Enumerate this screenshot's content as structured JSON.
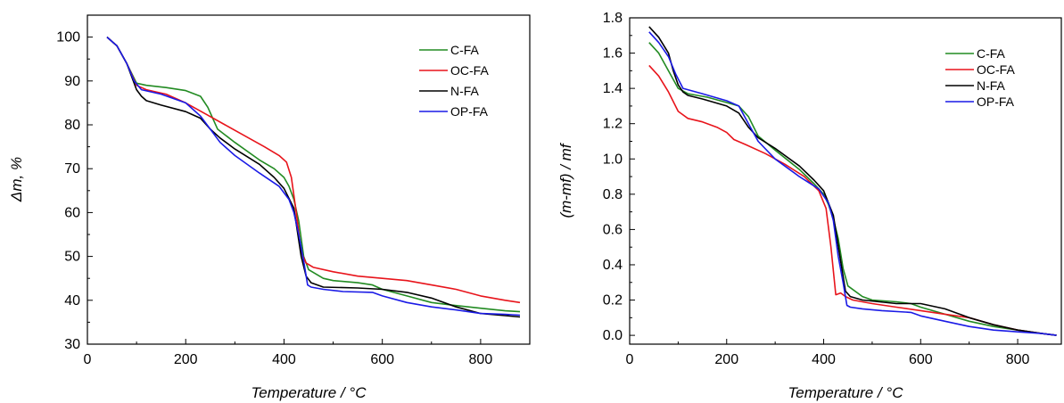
{
  "chart_data": [
    {
      "type": "line",
      "xlabel": "Temperature / °C",
      "ylabel": "Δm, %",
      "xlim": [
        0,
        900
      ],
      "ylim": [
        30,
        105
      ],
      "xticks": [
        0,
        200,
        400,
        600,
        800
      ],
      "yticks": [
        30,
        40,
        50,
        60,
        70,
        80,
        90,
        100
      ],
      "legend_position": "top-right",
      "series": [
        {
          "name": "C-FA",
          "color": "#228B22",
          "x": [
            40,
            60,
            80,
            100,
            120,
            160,
            200,
            230,
            245,
            265,
            300,
            350,
            380,
            400,
            410,
            420,
            430,
            440,
            450,
            480,
            500,
            550,
            580,
            600,
            650,
            700,
            750,
            800,
            850,
            880
          ],
          "y": [
            100,
            98,
            94,
            89.5,
            89,
            88.5,
            87.8,
            86.5,
            84,
            79,
            76,
            72,
            70,
            68,
            66,
            63,
            58,
            50,
            47,
            45,
            44.5,
            44,
            43.5,
            42.5,
            41,
            39.5,
            38.8,
            38.2,
            37.6,
            37.4
          ]
        },
        {
          "name": "OC-FA",
          "color": "#E8141B",
          "x": [
            40,
            60,
            80,
            100,
            120,
            160,
            200,
            240,
            280,
            320,
            360,
            390,
            405,
            415,
            425,
            435,
            445,
            460,
            500,
            550,
            600,
            650,
            700,
            750,
            800,
            850,
            880
          ],
          "y": [
            100,
            98,
            94,
            89,
            88,
            87,
            85,
            82.5,
            80,
            77.5,
            75,
            73,
            71.5,
            68,
            60,
            51,
            48.5,
            47.5,
            46.5,
            45.5,
            45,
            44.5,
            43.5,
            42.5,
            41,
            40,
            39.5
          ]
        },
        {
          "name": "N-FA",
          "color": "#000000",
          "x": [
            40,
            60,
            80,
            90,
            100,
            110,
            120,
            150,
            200,
            230,
            250,
            270,
            300,
            350,
            380,
            400,
            420,
            435,
            445,
            455,
            480,
            550,
            600,
            650,
            700,
            750,
            800,
            850,
            880
          ],
          "y": [
            100,
            98,
            94,
            91,
            88,
            86.5,
            85.5,
            84.5,
            83,
            81.5,
            79,
            77,
            74.5,
            71,
            68,
            65.5,
            61,
            50,
            45.5,
            44,
            43,
            42.8,
            42.5,
            41.8,
            40.5,
            38.5,
            37,
            36.5,
            36.2
          ]
        },
        {
          "name": "OP-FA",
          "color": "#1A1AE6",
          "x": [
            40,
            60,
            80,
            95,
            110,
            150,
            200,
            230,
            250,
            270,
            300,
            350,
            390,
            410,
            420,
            430,
            440,
            448,
            455,
            480,
            520,
            580,
            600,
            650,
            700,
            750,
            800,
            850,
            880
          ],
          "y": [
            100,
            98,
            94,
            90,
            88,
            87,
            85,
            82,
            79,
            76,
            73,
            69,
            66,
            63,
            60,
            55,
            49,
            43.5,
            43,
            42.5,
            42,
            41.8,
            41,
            39.5,
            38.5,
            37.8,
            37,
            36.8,
            36.6
          ]
        }
      ]
    },
    {
      "type": "line",
      "xlabel": "Temperature / °C",
      "ylabel": "(m-mf) / mf",
      "xlim": [
        0,
        890
      ],
      "ylim": [
        -0.05,
        1.8
      ],
      "xticks": [
        0,
        200,
        400,
        600,
        800
      ],
      "yticks": [
        0.0,
        0.2,
        0.4,
        0.6,
        0.8,
        1.0,
        1.2,
        1.4,
        1.6,
        1.8
      ],
      "legend_position": "top-right",
      "series": [
        {
          "name": "C-FA",
          "color": "#228B22",
          "x": [
            40,
            60,
            80,
            100,
            120,
            160,
            200,
            225,
            245,
            265,
            300,
            350,
            380,
            400,
            410,
            420,
            430,
            440,
            450,
            480,
            500,
            550,
            580,
            600,
            650,
            700,
            750,
            800,
            850,
            880
          ],
          "y": [
            1.66,
            1.6,
            1.5,
            1.4,
            1.37,
            1.35,
            1.32,
            1.3,
            1.24,
            1.13,
            1.05,
            0.94,
            0.86,
            0.8,
            0.74,
            0.66,
            0.55,
            0.38,
            0.28,
            0.22,
            0.2,
            0.19,
            0.18,
            0.16,
            0.12,
            0.08,
            0.05,
            0.03,
            0.01,
            0.0
          ]
        },
        {
          "name": "OC-FA",
          "color": "#E8141B",
          "x": [
            40,
            60,
            80,
            100,
            120,
            150,
            180,
            200,
            215,
            240,
            280,
            320,
            360,
            390,
            405,
            415,
            425,
            435,
            445,
            460,
            500,
            550,
            600,
            650,
            700,
            750,
            800,
            850,
            880
          ],
          "y": [
            1.53,
            1.47,
            1.38,
            1.27,
            1.23,
            1.21,
            1.18,
            1.15,
            1.11,
            1.08,
            1.03,
            0.97,
            0.9,
            0.82,
            0.72,
            0.5,
            0.23,
            0.24,
            0.22,
            0.2,
            0.18,
            0.16,
            0.14,
            0.12,
            0.1,
            0.06,
            0.03,
            0.01,
            0.0
          ]
        },
        {
          "name": "N-FA",
          "color": "#000000",
          "x": [
            40,
            60,
            80,
            90,
            100,
            110,
            120,
            150,
            200,
            225,
            245,
            265,
            300,
            350,
            380,
            400,
            420,
            435,
            445,
            455,
            480,
            550,
            600,
            650,
            700,
            750,
            800,
            850,
            880
          ],
          "y": [
            1.75,
            1.69,
            1.6,
            1.5,
            1.42,
            1.38,
            1.36,
            1.34,
            1.3,
            1.26,
            1.18,
            1.12,
            1.06,
            0.96,
            0.88,
            0.82,
            0.68,
            0.42,
            0.25,
            0.22,
            0.2,
            0.18,
            0.18,
            0.15,
            0.1,
            0.06,
            0.03,
            0.01,
            0.0
          ]
        },
        {
          "name": "OP-FA",
          "color": "#1A1AE6",
          "x": [
            40,
            60,
            80,
            95,
            110,
            150,
            200,
            225,
            245,
            265,
            300,
            350,
            390,
            410,
            420,
            430,
            440,
            448,
            455,
            480,
            520,
            580,
            600,
            650,
            700,
            750,
            800,
            850,
            880
          ],
          "y": [
            1.72,
            1.66,
            1.58,
            1.48,
            1.4,
            1.37,
            1.33,
            1.3,
            1.2,
            1.1,
            1.0,
            0.9,
            0.83,
            0.75,
            0.65,
            0.45,
            0.3,
            0.17,
            0.16,
            0.15,
            0.14,
            0.13,
            0.11,
            0.08,
            0.05,
            0.03,
            0.02,
            0.01,
            0.0
          ]
        }
      ]
    }
  ]
}
